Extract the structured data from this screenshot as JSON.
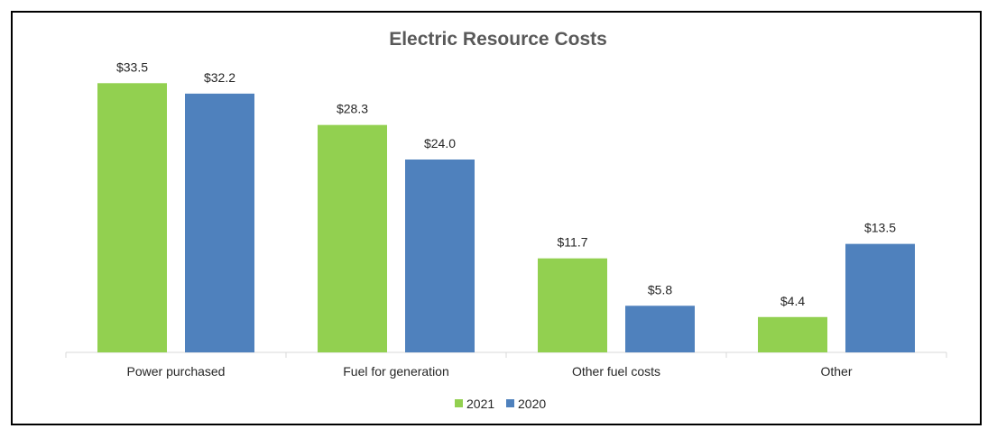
{
  "chart_data": {
    "type": "bar",
    "title": "Electric Resource Costs",
    "categories": [
      "Power purchased",
      "Fuel for generation",
      "Other fuel costs",
      "Other"
    ],
    "series": [
      {
        "name": "2021",
        "color": "#92D050",
        "values": [
          33.5,
          28.3,
          11.7,
          4.4
        ],
        "labels": [
          "$33.5",
          "$28.3",
          "$11.7",
          "$4.4"
        ]
      },
      {
        "name": "2020",
        "color": "#4F81BD",
        "values": [
          32.2,
          24.0,
          5.8,
          13.5
        ],
        "labels": [
          "$32.2",
          "$24.0",
          "$5.8",
          "$13.5"
        ]
      }
    ],
    "ylim": [
      0,
      36
    ],
    "grid": false,
    "legend": "bottom",
    "xlabel": "",
    "ylabel": ""
  }
}
